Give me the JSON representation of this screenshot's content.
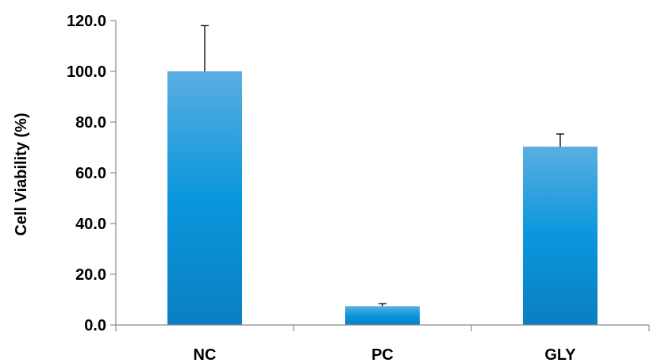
{
  "chart_data": {
    "type": "bar",
    "title": "",
    "xlabel": "",
    "ylabel": "Cell Viability (%)",
    "categories": [
      "NC",
      "PC",
      "GLY"
    ],
    "values": [
      100.0,
      7.4,
      70.3
    ],
    "error_bars": [
      18.0,
      1.0,
      5.0
    ],
    "ylim": [
      0,
      120
    ],
    "yticks": [
      0,
      20,
      40,
      60,
      80,
      100,
      120
    ],
    "ytick_labels": [
      "0.0",
      "20.0",
      "40.0",
      "60.0",
      "80.0",
      "100.0",
      "120.0"
    ],
    "grid": false,
    "legend": false,
    "colors": {
      "bar_top": "#5aaee0",
      "bar_mid": "#0a96dc",
      "bar_bottom": "#0a7fc2",
      "axis": "#8c8c8c",
      "error_bar": "#000000"
    }
  }
}
